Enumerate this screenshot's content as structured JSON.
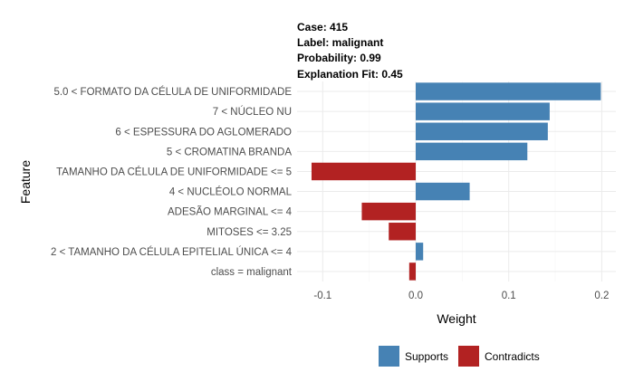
{
  "header": {
    "case": "Case: 415",
    "label": "Label: malignant",
    "probability": "Probability: 0.99",
    "fit": "Explanation Fit: 0.45"
  },
  "chart_data": {
    "type": "bar",
    "orientation": "horizontal",
    "xlabel": "Weight",
    "ylabel": "Feature",
    "xlim": [
      -0.115,
      0.2
    ],
    "xticks": [
      -0.1,
      0.0,
      0.1,
      0.2
    ],
    "xtick_labels": [
      "-0.1",
      "0.0",
      "0.1",
      "0.2"
    ],
    "categories": [
      "5.0 < FORMATO DA CÉLULA DE UNIFORMIDADE",
      "7 < NÚCLEO NU",
      "6 < ESPESSURA DO AGLOMERADO",
      "5 < CROMATINA BRANDA",
      "TAMANHO DA CÉLULA DE UNIFORMIDADE <= 5",
      "4 < NUCLÉOLO NORMAL",
      "ADESÃO MARGINAL <= 4",
      "MITOSES <= 3.25",
      "2 < TAMANHO DA CÉLULA EPITELIAL ÚNICA <= 4",
      "class = malignant"
    ],
    "values": [
      0.199,
      0.144,
      0.142,
      0.12,
      -0.112,
      0.058,
      -0.058,
      -0.029,
      0.008,
      -0.007
    ],
    "legend": [
      {
        "name": "Supports",
        "color": "#4682b4"
      },
      {
        "name": "Contradicts",
        "color": "#b22222"
      }
    ],
    "legend_position": "bottom",
    "grid": true
  }
}
